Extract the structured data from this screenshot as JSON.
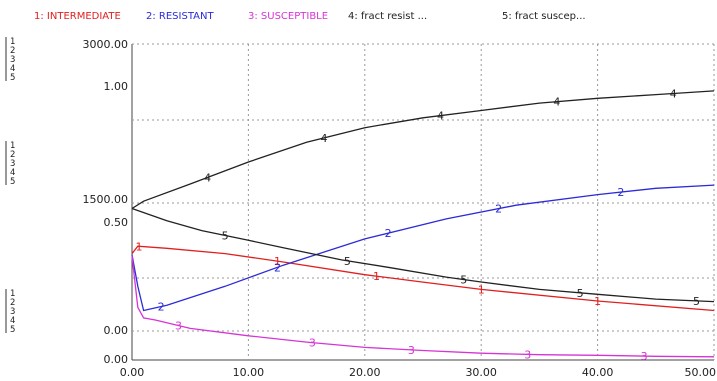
{
  "chart_data": {
    "type": "line",
    "legend": [
      {
        "index": "1",
        "label": "1: INTERMEDIATE",
        "color": "#e02020"
      },
      {
        "index": "2",
        "label": "2: RESISTANT",
        "color": "#2b2bd8"
      },
      {
        "index": "3",
        "label": "3: SUSCEPTIBLE",
        "color": "#d634d6"
      },
      {
        "index": "4",
        "label": "4: fract resist ...",
        "color": "#222222"
      },
      {
        "index": "5",
        "label": "5: fract suscep...",
        "color": "#222222"
      }
    ],
    "axis_keys": [
      "1",
      "2",
      "3",
      "4",
      "5"
    ],
    "x_ticks": [
      "0.00",
      "10.00",
      "20.00",
      "30.00",
      "40.00",
      "50.00"
    ],
    "xlim": [
      0,
      50
    ],
    "y_ticks": [
      {
        "population": "3000.00",
        "fraction": "1.00"
      },
      {
        "population": "1500.00",
        "fraction": "0.50"
      },
      {
        "population": "0.00",
        "fraction": "0.00"
      }
    ],
    "ylim_population": [
      0,
      3000
    ],
    "ylim_fraction": [
      0,
      1
    ],
    "grid": "dashed-light",
    "series": [
      {
        "key": "1",
        "name": "INTERMEDIATE",
        "color": "#e02020",
        "axis": "population",
        "x": [
          0,
          0.5,
          3,
          8,
          13,
          20,
          25,
          30,
          40,
          50
        ],
        "y": [
          1010,
          1080,
          1060,
          1010,
          930,
          810,
          740,
          670,
          560,
          470
        ]
      },
      {
        "key": "2",
        "name": "RESISTANT",
        "color": "#2b2bd8",
        "axis": "population",
        "x": [
          0,
          0.5,
          1,
          3,
          8,
          13,
          20,
          27,
          33,
          40,
          45,
          50
        ],
        "y": [
          1000,
          700,
          470,
          520,
          700,
          900,
          1150,
          1340,
          1470,
          1570,
          1630,
          1660
        ]
      },
      {
        "key": "3",
        "name": "SUSCEPTIBLE",
        "color": "#d634d6",
        "axis": "population",
        "x": [
          0,
          0.5,
          1,
          2,
          5,
          10,
          15,
          20,
          25,
          30,
          35,
          40,
          45,
          50
        ],
        "y": [
          990,
          500,
          400,
          380,
          300,
          230,
          170,
          120,
          90,
          65,
          50,
          45,
          35,
          30
        ]
      },
      {
        "key": "4",
        "name": "fract resist",
        "color": "#222222",
        "axis": "fraction",
        "x": [
          0,
          1,
          5,
          10,
          15,
          20,
          25,
          30,
          35,
          40,
          45,
          50
        ],
        "y": [
          0.5,
          0.53,
          0.6,
          0.69,
          0.77,
          0.83,
          0.87,
          0.9,
          0.93,
          0.95,
          0.965,
          0.98
        ]
      },
      {
        "key": "5",
        "name": "fract suscep",
        "color": "#222222",
        "axis": "fraction",
        "x": [
          0,
          3,
          6,
          10,
          13,
          18,
          22,
          27,
          30,
          35,
          40,
          45,
          50
        ],
        "y": [
          0.5,
          0.45,
          0.41,
          0.37,
          0.34,
          0.29,
          0.26,
          0.22,
          0.2,
          0.17,
          0.15,
          0.13,
          0.12
        ]
      }
    ],
    "markers": [
      {
        "key": "1",
        "x": [
          0.6,
          12.5,
          21,
          30,
          40
        ]
      },
      {
        "key": "2",
        "x": [
          2.5,
          12.5,
          22,
          31.5,
          42
        ]
      },
      {
        "key": "3",
        "x": [
          4,
          15.5,
          24,
          34,
          44
        ]
      },
      {
        "key": "4",
        "x": [
          6.5,
          16.5,
          26.5,
          36.5,
          46.5
        ]
      },
      {
        "key": "5",
        "x": [
          8,
          18.5,
          28.5,
          38.5,
          48.5
        ]
      }
    ]
  }
}
